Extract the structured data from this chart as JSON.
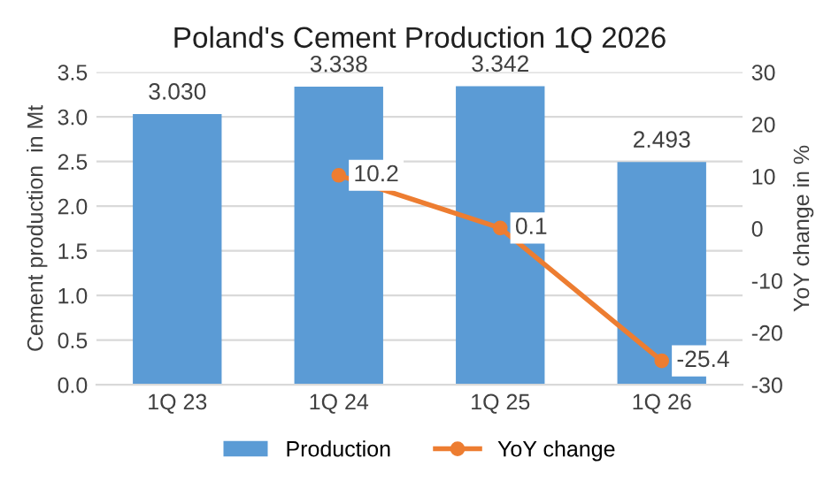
{
  "chart_data": {
    "type": "bar",
    "title": "Poland's Cement Production 1Q 2026",
    "ylabel": "Cement production  in Mt",
    "y2label": "YoY change in %",
    "categories": [
      "1Q 23",
      "1Q 24",
      "1Q 25",
      "1Q 26"
    ],
    "series": [
      {
        "name": "Production",
        "color": "#5b9bd5",
        "values": [
          3.03,
          3.338,
          3.342,
          2.493
        ],
        "value_labels": [
          "3.030",
          "3.338",
          "3.342",
          "2.493"
        ]
      },
      {
        "name": "YoY change",
        "type": "line",
        "axis": "y2",
        "color": "#ed7d31",
        "marker": "circle",
        "values": [
          null,
          10.2,
          0.1,
          -25.4
        ],
        "value_labels": [
          null,
          "10.2",
          "0.1",
          "-25.4"
        ]
      }
    ],
    "ylim": [
      0,
      3.5
    ],
    "yticks": [
      {
        "value": 0,
        "label": "0.0"
      },
      0.5,
      {
        "value": 1,
        "label": "1.0"
      },
      1.5,
      {
        "value": 2,
        "label": "2.0"
      },
      2.5,
      {
        "value": 3,
        "label": "3.0"
      },
      3.5
    ],
    "y2lim": [
      -30,
      30
    ],
    "y2ticks": [
      -30,
      -20,
      -10,
      0,
      10,
      20,
      30
    ],
    "grid": "y",
    "legend": "bottom"
  }
}
